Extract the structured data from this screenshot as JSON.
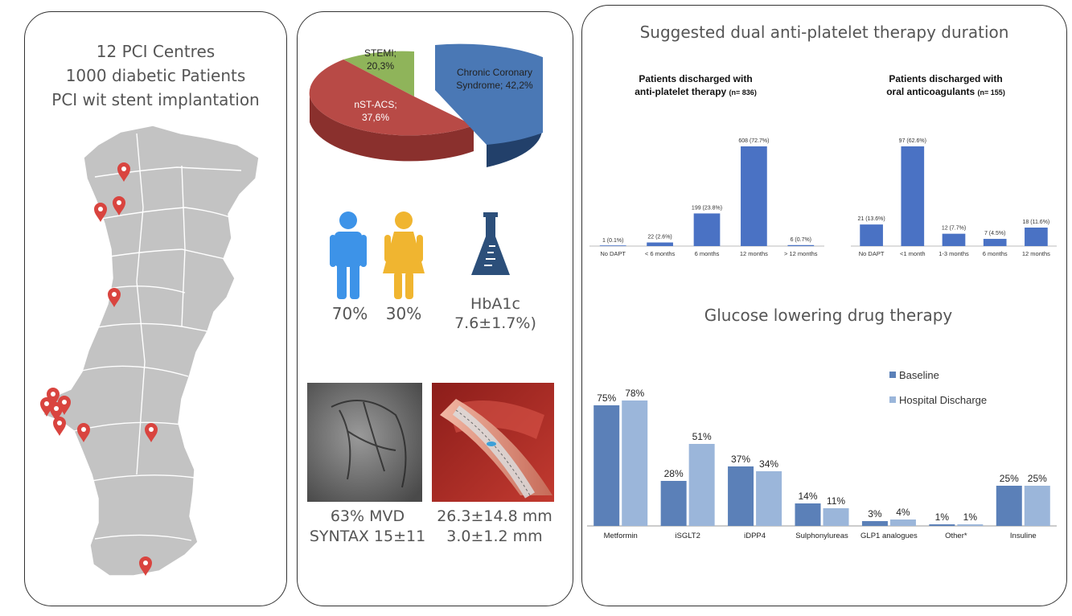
{
  "panel_left": {
    "lines": [
      "12 PCI Centres",
      "1000 diabetic Patients",
      "PCI wit stent implantation"
    ]
  },
  "panel_middle": {
    "pie": {
      "slices": [
        {
          "label": "Chronic Coronary Syndrome; 42,2%",
          "value": 42.2,
          "color": "#4a78b5"
        },
        {
          "label": "nST-ACS; 37,6%",
          "value": 37.6,
          "color": "#b84a46"
        },
        {
          "label": "STEMI; 20,3%",
          "value": 20.3,
          "color": "#8fb45a"
        }
      ]
    },
    "male_pct": "70%",
    "female_pct": "30%",
    "hba1c_label": "HbA1c",
    "hba1c_value": "7.6±1.7%)",
    "mvd": "63% MVD",
    "syntax": "SYNTAX 15±11",
    "stent_length": "26.3±14.8 mm",
    "stent_diameter": "3.0±1.2 mm",
    "colors": {
      "male": "#3d93e8",
      "female": "#f0b530",
      "flask": "#2c4f7a"
    },
    "icons": [
      "male-figure-icon",
      "female-figure-icon",
      "flask-icon",
      "angiogram-image",
      "stent-image"
    ]
  },
  "panel_right": {
    "dapt_title": "Suggested dual anti-platelet therapy duration",
    "glucose_title": "Glucose lowering drug therapy"
  },
  "chart_data": [
    {
      "type": "bar",
      "title": "Patients discharged with anti-platelet therapy (n= 836)",
      "categories": [
        "No DAPT",
        "< 6 months",
        "6 months",
        "12 months",
        "> 12 months"
      ],
      "values": [
        1,
        22,
        199,
        608,
        6
      ],
      "data_labels": [
        "1 (0.1%)",
        "22 (2.6%)",
        "199 (23.8%)",
        "608 (72.7%)",
        "6 (0.7%)"
      ],
      "ylim": [
        0,
        608
      ],
      "color": "#4a72c4"
    },
    {
      "type": "bar",
      "title": "Patients discharged with oral anticoagulants (n= 155)",
      "categories": [
        "No DAPT",
        "<1 month",
        "1-3 months",
        "6 months",
        "12 months"
      ],
      "values": [
        21,
        97,
        12,
        7,
        18
      ],
      "data_labels": [
        "21 (13.6%)",
        "97 (62.6%)",
        "12 (7.7%)",
        "7 (4.5%)",
        "18 (11.6%)"
      ],
      "ylim": [
        0,
        97
      ],
      "color": "#4a72c4"
    },
    {
      "type": "bar",
      "title": "Glucose lowering drug therapy",
      "categories": [
        "Metformin",
        "iSGLT2",
        "iDPP4",
        "Sulphonylureas",
        "GLP1 analogues",
        "Other*",
        "Insuline"
      ],
      "series": [
        {
          "name": "Baseline",
          "values": [
            75,
            28,
            37,
            14,
            3,
            1,
            25
          ],
          "labels": [
            "75%",
            "28%",
            "37%",
            "14%",
            "3%",
            "1%",
            "25%"
          ],
          "color": "#5b80b8"
        },
        {
          "name": "Hospital Discharge",
          "values": [
            78,
            51,
            34,
            11,
            4,
            1,
            25
          ],
          "labels": [
            "78%",
            "51%",
            "34%",
            "11%",
            "4%",
            "1%",
            "25%"
          ],
          "color": "#9bb6da"
        }
      ],
      "ylim": [
        0,
        80
      ],
      "legend": "top-right"
    }
  ]
}
